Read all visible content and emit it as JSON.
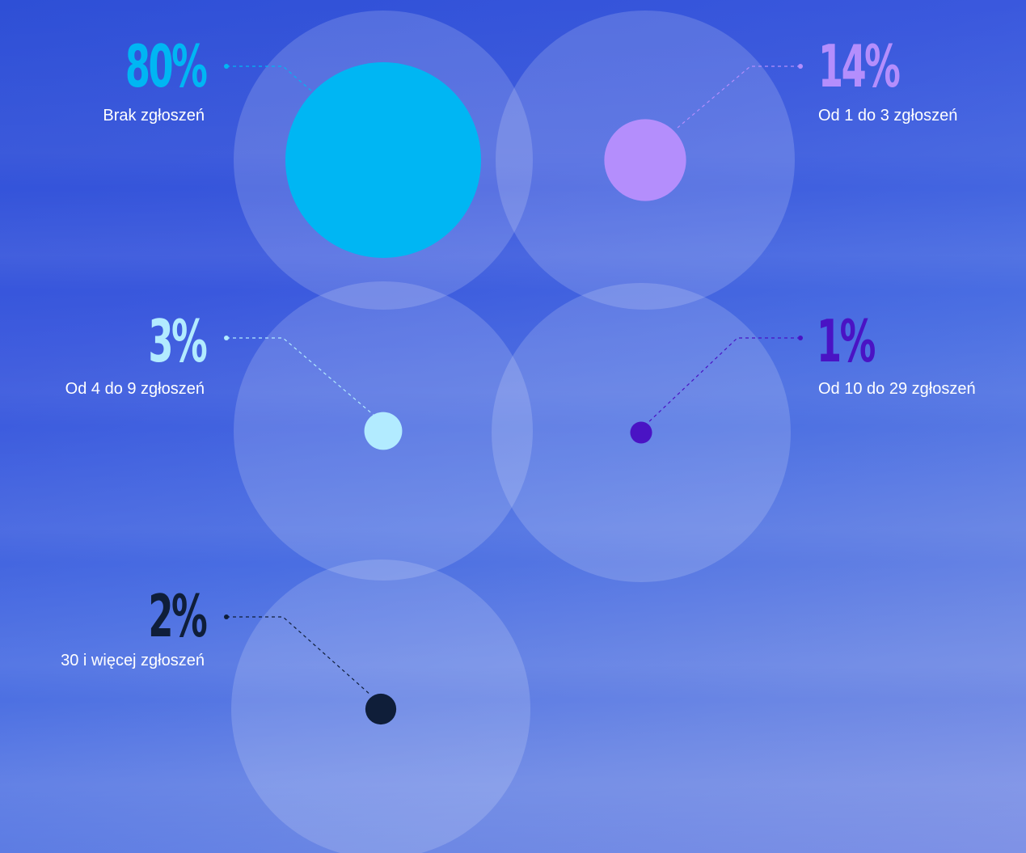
{
  "chart_data": {
    "type": "bubble",
    "unit": "%",
    "items": [
      {
        "value": 80,
        "label": "Brak zgłoszeń",
        "color": "#00b6f3"
      },
      {
        "value": 14,
        "label": "Od 1 do 3 zgłoszeń",
        "color": "#b48efc"
      },
      {
        "value": 3,
        "label": "Od 4 do 9 zgłoszeń",
        "color": "#b2ebff"
      },
      {
        "value": 1,
        "label": "Od 10 do 29 zgłoszeń",
        "color": "#4a13c4"
      },
      {
        "value": 2,
        "label": "30 i więcej zgłoszeń",
        "color": "#0f1e39"
      }
    ]
  },
  "labels": {
    "v0": "80%",
    "v1": "14%",
    "v2": "3%",
    "v3": "1%",
    "v4": "2%"
  }
}
